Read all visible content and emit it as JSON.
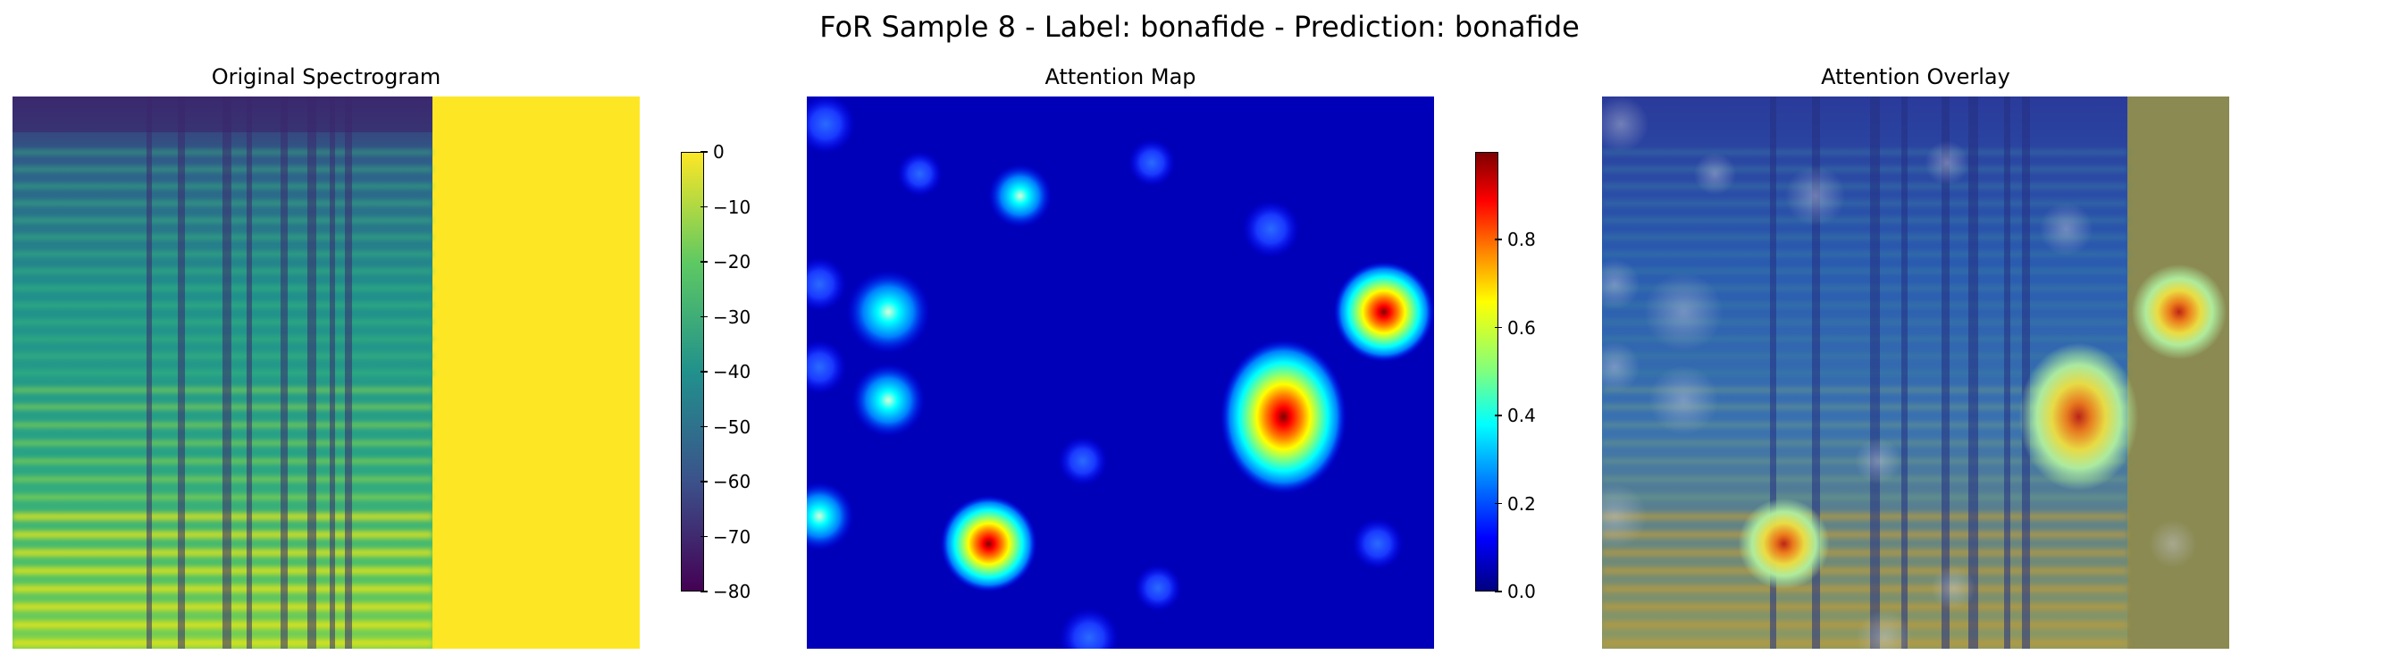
{
  "title": "FoR Sample 8 - Label: bonafide - Prediction: bonafide",
  "colors": {
    "viridis": [
      "#440154",
      "#3b528b",
      "#21918c",
      "#5ec962",
      "#fde725"
    ],
    "jet": [
      "#00007f",
      "#0000ff",
      "#007fff",
      "#00ffff",
      "#7fff7f",
      "#ffff00",
      "#ff7f00",
      "#ff0000",
      "#7f0000"
    ]
  },
  "chart_data": [
    {
      "type": "heatmap",
      "title": "Original Spectrogram",
      "colormap": "viridis",
      "colorbar": {
        "range": [
          -80,
          0
        ],
        "ticks": [
          0,
          -10,
          -20,
          -30,
          -40,
          -50,
          -60,
          -70,
          -80
        ],
        "tick_labels": [
          "0",
          "−10",
          "−20",
          "−30",
          "−40",
          "−50",
          "−60",
          "−70",
          "−80"
        ]
      },
      "axes": "off",
      "content_fraction": 0.67,
      "padding_value": 0
    },
    {
      "type": "heatmap",
      "title": "Attention Map",
      "colormap": "jet",
      "colorbar": {
        "range": [
          0,
          1
        ],
        "ticks": [
          0,
          0.2,
          0.4,
          0.6,
          0.8
        ],
        "tick_labels": [
          "0.0",
          "0.2",
          "0.4",
          "0.6",
          "0.8"
        ]
      },
      "axes": "off",
      "background_value": 0.08,
      "hotspots": [
        {
          "x": 0.76,
          "y": 0.58,
          "value": 0.98
        },
        {
          "x": 0.92,
          "y": 0.39,
          "value": 0.72
        },
        {
          "x": 0.29,
          "y": 0.81,
          "value": 0.68
        },
        {
          "x": 0.13,
          "y": 0.39,
          "value": 0.55
        },
        {
          "x": 0.13,
          "y": 0.55,
          "value": 0.45
        },
        {
          "x": 0.02,
          "y": 0.76,
          "value": 0.4
        },
        {
          "x": 0.34,
          "y": 0.18,
          "value": 0.35
        },
        {
          "x": 0.03,
          "y": 0.05,
          "value": 0.3
        },
        {
          "x": 0.74,
          "y": 0.24,
          "value": 0.28
        },
        {
          "x": 0.02,
          "y": 0.34,
          "value": 0.25
        },
        {
          "x": 0.02,
          "y": 0.49,
          "value": 0.25
        },
        {
          "x": 0.45,
          "y": 0.98,
          "value": 0.3
        },
        {
          "x": 0.91,
          "y": 0.81,
          "value": 0.22
        },
        {
          "x": 0.44,
          "y": 0.66,
          "value": 0.2
        },
        {
          "x": 0.55,
          "y": 0.12,
          "value": 0.18
        },
        {
          "x": 0.18,
          "y": 0.14,
          "value": 0.16
        },
        {
          "x": 0.56,
          "y": 0.89,
          "value": 0.18
        }
      ]
    },
    {
      "type": "heatmap",
      "title": "Attention Overlay",
      "composition": "Attention Map blended over Original Spectrogram",
      "axes": "off",
      "overlay_alpha": 0.5
    }
  ]
}
